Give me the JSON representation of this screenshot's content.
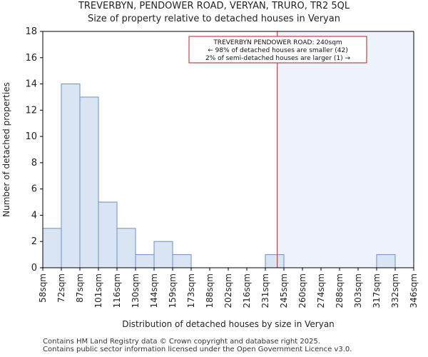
{
  "title": "TREVERBYN, PENDOWER ROAD, VERYAN, TRURO, TR2 5QL",
  "subtitle": "Size of property relative to detached houses in Veryan",
  "footer": {
    "line1": "Contains HM Land Registry data © Crown copyright and database right 2025.",
    "line2": "Contains public sector information licensed under the Open Government Licence v3.0."
  },
  "chart_data": {
    "type": "bar",
    "title": "TREVERBYN, PENDOWER ROAD, VERYAN, TRURO, TR2 5QL",
    "subtitle": "Size of property relative to detached houses in Veryan",
    "xlabel": "Distribution of detached houses by size in Veryan",
    "ylabel": "Number of detached properties",
    "ylim": [
      0,
      18
    ],
    "yticks": [
      0,
      2,
      4,
      6,
      8,
      10,
      12,
      14,
      16,
      18
    ],
    "bin_edges": [
      58,
      72,
      87,
      101,
      116,
      130,
      144,
      159,
      173,
      188,
      202,
      216,
      231,
      245,
      260,
      274,
      288,
      303,
      317,
      332,
      346
    ],
    "tick_labels": [
      "58sqm",
      "72sqm",
      "87sqm",
      "101sqm",
      "116sqm",
      "130sqm",
      "144sqm",
      "159sqm",
      "173sqm",
      "188sqm",
      "202sqm",
      "216sqm",
      "231sqm",
      "245sqm",
      "260sqm",
      "274sqm",
      "288sqm",
      "303sqm",
      "317sqm",
      "332sqm",
      "346sqm"
    ],
    "values": [
      3,
      14,
      13,
      5,
      3,
      1,
      2,
      1,
      0,
      0,
      0,
      0,
      1,
      0,
      0,
      0,
      0,
      0,
      1,
      0
    ],
    "marker": {
      "value": 240,
      "color": "#b22222",
      "annotation": [
        "TREVERBYN PENDOWER ROAD: 240sqm",
        "← 98% of detached houses are smaller (42)",
        "2% of semi-detached houses are larger (1) →"
      ]
    },
    "colors": {
      "bar_fill": "#dae5f4",
      "bar_edge": "#6a8fc8",
      "shade": "#eef2fa",
      "marker": "#b22222"
    }
  }
}
